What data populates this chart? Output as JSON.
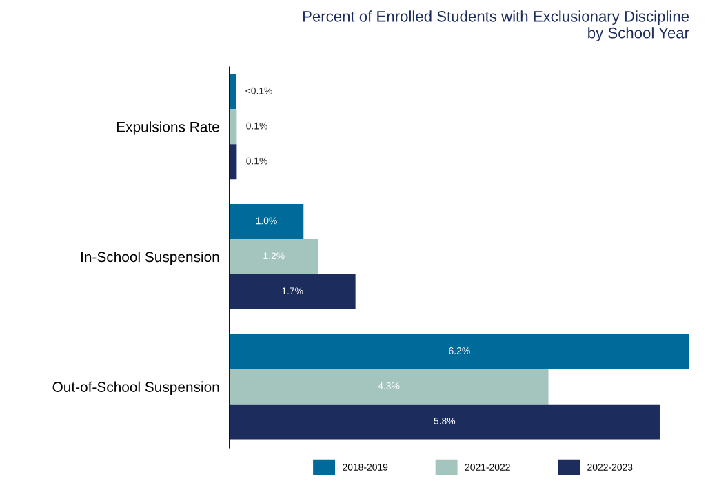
{
  "chart_data": {
    "type": "bar",
    "orientation": "horizontal",
    "title": "Percent of Enrolled Students with Exclusionary Discipline\nby School Year",
    "categories": [
      "Expulsions Rate",
      "In-School Suspension",
      "Out-of-School Suspension"
    ],
    "series": [
      {
        "name": "2018-2019",
        "color": "#006b9a",
        "values": [
          0.09,
          1.0,
          6.2
        ],
        "value_labels": [
          "<0.1%",
          "1.0%",
          "6.2%"
        ]
      },
      {
        "name": "2021-2022",
        "color": "#a3c5be",
        "values": [
          0.1,
          1.2,
          4.3
        ],
        "value_labels": [
          "0.1%",
          "1.2%",
          "4.3%"
        ]
      },
      {
        "name": "2022-2023",
        "color": "#1c2c5c",
        "values": [
          0.1,
          1.7,
          5.8
        ],
        "value_labels": [
          "0.1%",
          "1.7%",
          "5.8%"
        ]
      }
    ],
    "tick_labels": "y",
    "grid": false,
    "legend": "bottom"
  }
}
